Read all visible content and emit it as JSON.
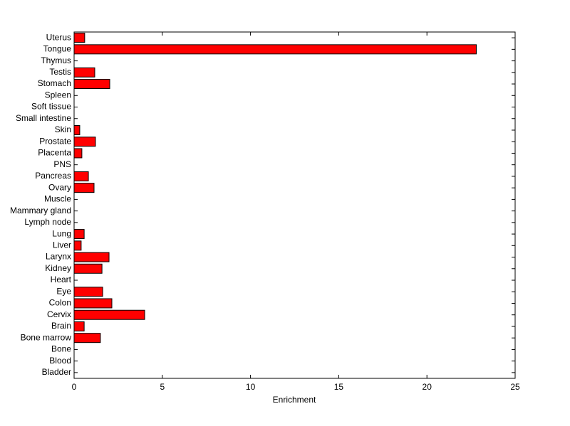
{
  "chart_data": {
    "type": "barh",
    "categories": [
      "Uterus",
      "Tongue",
      "Thymus",
      "Testis",
      "Stomach",
      "Spleen",
      "Soft tissue",
      "Small intestine",
      "Skin",
      "Prostate",
      "Placenta",
      "PNS",
      "Pancreas",
      "Ovary",
      "Muscle",
      "Mammary gland",
      "Lymph node",
      "Lung",
      "Liver",
      "Larynx",
      "Kidney",
      "Heart",
      "Eye",
      "Colon",
      "Cervix",
      "Brain",
      "Bone marrow",
      "Bone",
      "Blood",
      "Bladder"
    ],
    "values": [
      0.6,
      22.8,
      0,
      1.17,
      2.02,
      0,
      0,
      0,
      0.32,
      1.21,
      0.44,
      0,
      0.81,
      1.13,
      0,
      0,
      0,
      0.57,
      0.4,
      1.98,
      1.58,
      0,
      1.62,
      2.14,
      4.0,
      0.57,
      1.49,
      0,
      0,
      0
    ],
    "color": "#ff0000",
    "xlabel": "Enrichment",
    "xlim": [
      0,
      25
    ],
    "xticks": [
      0,
      5,
      10,
      15,
      20,
      25
    ]
  }
}
